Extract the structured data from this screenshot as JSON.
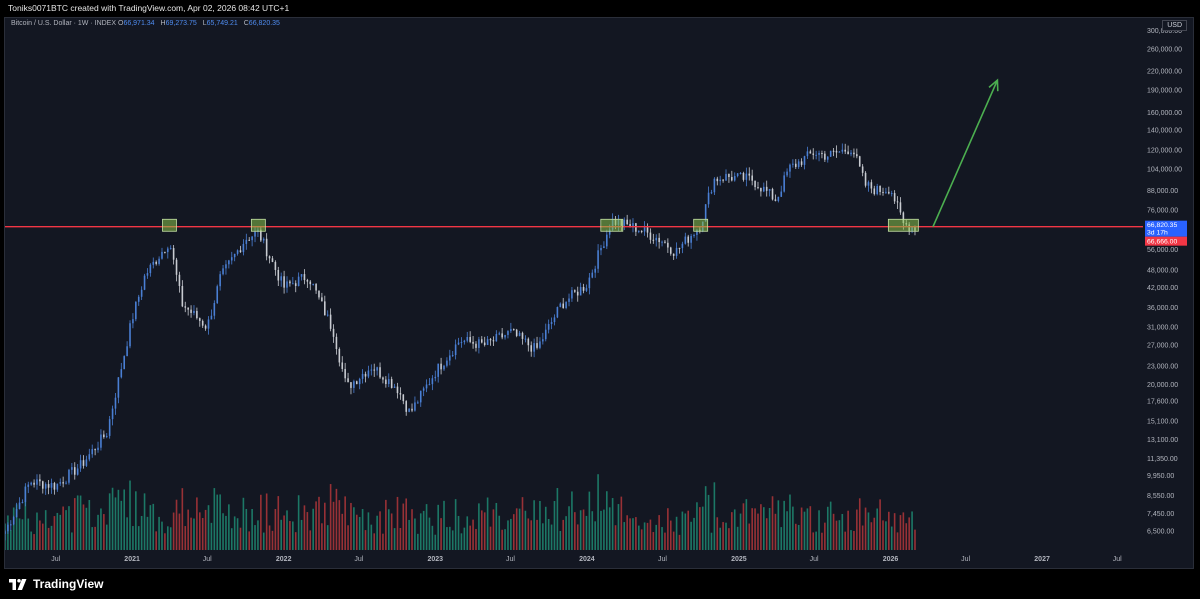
{
  "header": {
    "author_line": "Toniks0071BTC created with TradingView.com, Apr 02, 2026 08:42 UTC+1"
  },
  "legend": {
    "symbol": "Bitcoin / U.S. Dollar · 1W · INDEX",
    "o_label": "O",
    "o": "66,971.34",
    "h_label": "H",
    "h": "69,273.75",
    "l_label": "L",
    "l": "65,749.21",
    "c_label": "C",
    "c": "66,820.35"
  },
  "currency": "USD",
  "footer": {
    "logo_text": "TradingView"
  },
  "colors": {
    "background": "#131722",
    "up_candle": "#4a7fd4",
    "down_candle": "#c8cbd1",
    "vol_up": "#1e8a72",
    "vol_down": "#b0363a",
    "support_line": "#f23645",
    "arrow": "#4caf50",
    "box_fill": "#8bc34a",
    "price_tag": "#2962ff"
  },
  "chart_data": {
    "type": "candlestick",
    "scale": "log",
    "ylim": [
      5800,
      330000
    ],
    "y_ticks": [
      "300,000.00",
      "260,000.00",
      "220,000.00",
      "190,000.00",
      "160,000.00",
      "140,000.00",
      "120,000.00",
      "104,000.00",
      "88,000.00",
      "76,000.00",
      "66,000.00",
      "56,000.00",
      "48,000.00",
      "42,000.00",
      "36,000.00",
      "31,000.00",
      "27,000.00",
      "23,000.00",
      "20,000.00",
      "17,600.00",
      "15,100.00",
      "13,100.00",
      "11,350.00",
      "9,950.00",
      "8,550.00",
      "7,450.00",
      "6,500.00"
    ],
    "x_labels": [
      "Jul",
      "2021",
      "Jul",
      "2022",
      "Jul",
      "2023",
      "Jul",
      "2024",
      "Jul",
      "2025",
      "Jul",
      "2026",
      "Jul",
      "2027",
      "Jul"
    ],
    "x_label_dates": [
      "2020-07",
      "2021-01",
      "2021-07",
      "2022-01",
      "2022-07",
      "2023-01",
      "2023-07",
      "2024-01",
      "2024-07",
      "2025-01",
      "2025-07",
      "2026-01",
      "2026-07",
      "2027-01",
      "2027-07"
    ],
    "price_path": [
      {
        "date": "2020-03",
        "price": 6500
      },
      {
        "date": "2020-05",
        "price": 9500
      },
      {
        "date": "2020-07",
        "price": 9200
      },
      {
        "date": "2020-09",
        "price": 10800
      },
      {
        "date": "2020-11",
        "price": 13800
      },
      {
        "date": "2021-01",
        "price": 33000
      },
      {
        "date": "2021-02",
        "price": 46000
      },
      {
        "date": "2021-04",
        "price": 60000
      },
      {
        "date": "2021-05",
        "price": 37000
      },
      {
        "date": "2021-07",
        "price": 31000
      },
      {
        "date": "2021-08",
        "price": 45000
      },
      {
        "date": "2021-10",
        "price": 61000
      },
      {
        "date": "2021-11",
        "price": 64000
      },
      {
        "date": "2022-01",
        "price": 42000
      },
      {
        "date": "2022-03",
        "price": 46000
      },
      {
        "date": "2022-05",
        "price": 30000
      },
      {
        "date": "2022-06",
        "price": 19500
      },
      {
        "date": "2022-08",
        "price": 23000
      },
      {
        "date": "2022-10",
        "price": 19500
      },
      {
        "date": "2022-11",
        "price": 16000
      },
      {
        "date": "2023-01",
        "price": 22000
      },
      {
        "date": "2023-03",
        "price": 28000
      },
      {
        "date": "2023-05",
        "price": 27000
      },
      {
        "date": "2023-07",
        "price": 29800
      },
      {
        "date": "2023-09",
        "price": 26000
      },
      {
        "date": "2023-11",
        "price": 37000
      },
      {
        "date": "2024-01",
        "price": 43000
      },
      {
        "date": "2024-03",
        "price": 70000
      },
      {
        "date": "2024-05",
        "price": 66000
      },
      {
        "date": "2024-07",
        "price": 60000
      },
      {
        "date": "2024-08",
        "price": 55000
      },
      {
        "date": "2024-10",
        "price": 68000
      },
      {
        "date": "2024-11",
        "price": 96000
      },
      {
        "date": "2024-12",
        "price": 98000
      },
      {
        "date": "2025-02",
        "price": 96000
      },
      {
        "date": "2025-04",
        "price": 82000
      },
      {
        "date": "2025-05",
        "price": 104000
      },
      {
        "date": "2025-07",
        "price": 118000
      },
      {
        "date": "2025-08",
        "price": 115000
      },
      {
        "date": "2025-10",
        "price": 122000
      },
      {
        "date": "2025-11",
        "price": 92000
      },
      {
        "date": "2025-12",
        "price": 88000
      },
      {
        "date": "2026-01",
        "price": 90000
      },
      {
        "date": "2026-02",
        "price": 68000
      },
      {
        "date": "2026-03",
        "price": 66820
      }
    ],
    "support_level": 66820.35,
    "price_tags": {
      "close": "66,820.35",
      "countdown": "3d 17h",
      "level": "66,666.00"
    },
    "highlight_boxes": [
      {
        "date": "2021-04",
        "price": 66000
      },
      {
        "date": "2021-11",
        "price": 66000
      },
      {
        "date": "2024-03",
        "price": 66000
      },
      {
        "date": "2024-10",
        "price": 66000
      },
      {
        "date": "2026-02",
        "price": 66000
      }
    ],
    "projection_arrow": {
      "from": {
        "date": "2026-03",
        "price": 66820
      },
      "to": {
        "date": "2026-09",
        "price": 205000
      }
    }
  }
}
